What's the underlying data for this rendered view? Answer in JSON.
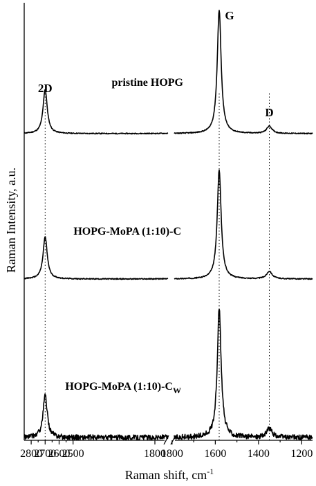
{
  "chart_data": {
    "type": "line",
    "xlabel": "Raman shift, cm",
    "xlabel_sup": "-1",
    "ylabel": "Raman Intensity, a.u.",
    "x_reversed": true,
    "x_axis_break": "between 1800 and 2400",
    "xlim_left_segment": [
      2850,
      1820
    ],
    "xlim_right_segment": [
      1790,
      1150
    ],
    "x_ticks_left": [
      2800,
      2700,
      2600,
      2500,
      1800
    ],
    "x_ticks_right": [
      1800,
      1600,
      1400,
      1200
    ],
    "y_ticks_shown": false,
    "peak_labels": [
      {
        "text": "2D",
        "x": 2700
      },
      {
        "text": "G",
        "x": 1582
      },
      {
        "text": "D",
        "x": 1350
      }
    ],
    "guide_lines_x": [
      2700,
      1582,
      1350
    ],
    "series": [
      {
        "name": "pristine HOPG",
        "label_text": "pristine HOPG",
        "label_sub": "",
        "offset": 2,
        "noise": 0.004,
        "baseline_norm": 0.0,
        "peaks": [
          {
            "x": 2700,
            "height": 0.36,
            "width": 18
          },
          {
            "x": 1582,
            "height": 1.0,
            "width": 11
          },
          {
            "x": 1350,
            "height": 0.06,
            "width": 15
          }
        ]
      },
      {
        "name": "HOPG-MoPA (1:10)-C",
        "label_text": "HOPG-MoPA (1:10)-C",
        "label_sub": "",
        "offset": 1,
        "noise": 0.004,
        "baseline_norm": 0.0,
        "peaks": [
          {
            "x": 2700,
            "height": 0.33,
            "width": 18
          },
          {
            "x": 1582,
            "height": 0.85,
            "width": 11
          },
          {
            "x": 1350,
            "height": 0.06,
            "width": 15
          }
        ]
      },
      {
        "name": "HOPG-MoPA (1:10)-Cw",
        "label_text": "HOPG-MoPA (1:10)-C",
        "label_sub": "W",
        "offset": 0,
        "noise": 0.02,
        "baseline_norm": 0.0,
        "peaks": [
          {
            "x": 2700,
            "height": 0.33,
            "width": 18
          },
          {
            "x": 1582,
            "height": 1.0,
            "width": 11
          },
          {
            "x": 1350,
            "height": 0.07,
            "width": 15
          }
        ]
      }
    ]
  }
}
